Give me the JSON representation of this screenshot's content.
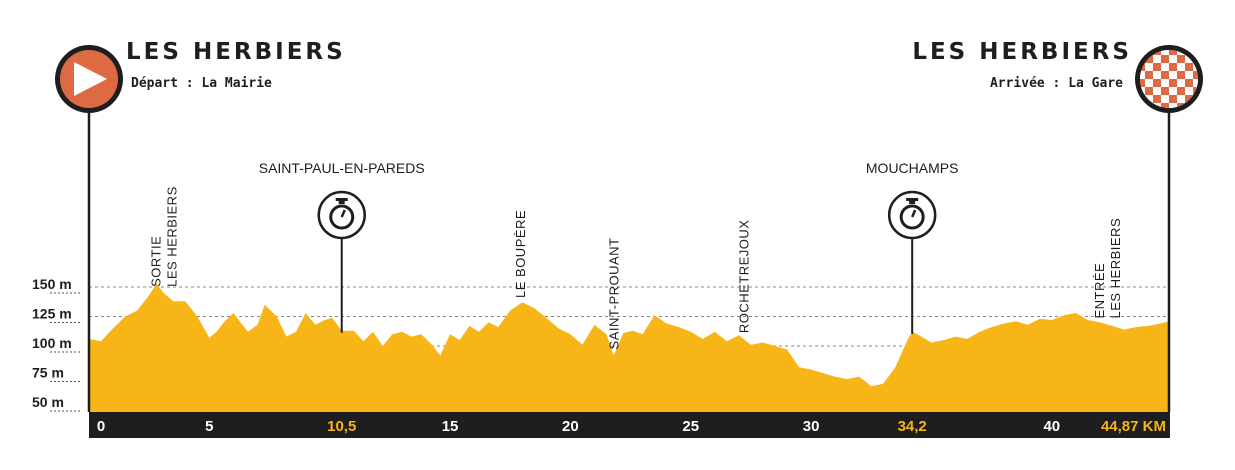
{
  "start": {
    "town": "LES HERBIERS",
    "subtitle": "Départ : La Mairie"
  },
  "finish": {
    "town": "LES HERBIERS",
    "subtitle": "Arrivée : La Gare"
  },
  "colors": {
    "profile": "#f7b517",
    "start_badge": "#de6a44",
    "axis_bar": "#1e1e1e",
    "highlight_tick": "#f7b517",
    "grid": "#888888"
  },
  "chart_data": {
    "type": "area",
    "title": "",
    "xlabel": "",
    "ylabel": "",
    "xlim": [
      0,
      44.87
    ],
    "ylim": [
      50,
      230
    ],
    "y_ticks": [
      {
        "value": 150,
        "label": "150 m"
      },
      {
        "value": 125,
        "label": "125 m"
      },
      {
        "value": 100,
        "label": "100 m"
      },
      {
        "value": 75,
        "label": "75 m"
      },
      {
        "value": 50,
        "label": "50 m"
      }
    ],
    "x_ticks": [
      {
        "value": 0,
        "label": "0",
        "highlight": false
      },
      {
        "value": 5,
        "label": "5",
        "highlight": false
      },
      {
        "value": 10.5,
        "label": "10,5",
        "highlight": true
      },
      {
        "value": 15,
        "label": "15",
        "highlight": false
      },
      {
        "value": 20,
        "label": "20",
        "highlight": false
      },
      {
        "value": 25,
        "label": "25",
        "highlight": false
      },
      {
        "value": 30,
        "label": "30",
        "highlight": false
      },
      {
        "value": 34.2,
        "label": "34,2",
        "highlight": true
      },
      {
        "value": 40,
        "label": "40",
        "highlight": false
      },
      {
        "value": 44.87,
        "label": "44,87 KM",
        "highlight": true
      }
    ],
    "grid_lines": [
      150,
      125,
      100
    ],
    "series": [
      {
        "x": [
          0,
          0.5,
          1.0,
          1.5,
          2.0,
          2.5,
          2.8,
          3.1,
          3.5,
          4.0,
          4.5,
          5.0,
          5.3,
          5.6,
          6.0,
          6.3,
          6.6,
          7.0,
          7.3,
          7.8,
          8.2,
          8.6,
          9.0,
          9.4,
          9.8,
          10.1,
          10.5,
          11.0,
          11.4,
          11.8,
          12.2,
          12.6,
          13.0,
          13.4,
          13.8,
          14.2,
          14.6,
          15.0,
          15.4,
          15.8,
          16.2,
          16.6,
          17.0,
          17.5,
          18.0,
          18.5,
          19.0,
          19.5,
          20.0,
          20.5,
          21.0,
          21.5,
          21.8,
          22.2,
          22.6,
          23.0,
          23.5,
          24.0,
          24.5,
          25.0,
          25.5,
          26.0,
          26.5,
          27.0,
          27.5,
          28.0,
          28.5,
          29.0,
          29.5,
          30.0,
          30.5,
          31.0,
          31.5,
          32.0,
          32.5,
          33.0,
          33.5,
          34.0,
          34.2,
          34.5,
          35.0,
          35.5,
          36.0,
          36.5,
          37.0,
          37.5,
          38.0,
          38.5,
          39.0,
          39.5,
          40.0,
          40.5,
          41.0,
          41.5,
          42.0,
          42.5,
          43.0,
          43.5,
          44.0,
          44.5,
          44.87
        ],
        "y": [
          106,
          104,
          115,
          125,
          130,
          143,
          153,
          145,
          138,
          138,
          125,
          107,
          112,
          120,
          128,
          120,
          112,
          118,
          135,
          125,
          108,
          112,
          128,
          118,
          122,
          124,
          113,
          113,
          104,
          112,
          100,
          110,
          112,
          108,
          110,
          102,
          92,
          110,
          105,
          117,
          112,
          120,
          116,
          130,
          137,
          132,
          124,
          115,
          110,
          101,
          118,
          110,
          92,
          111,
          113,
          110,
          126,
          119,
          116,
          112,
          106,
          112,
          104,
          109,
          101,
          103,
          100,
          97,
          82,
          80,
          77,
          74,
          72,
          74,
          66,
          68,
          82,
          105,
          112,
          109,
          103,
          105,
          108,
          106,
          112,
          116,
          119,
          121,
          118,
          123,
          122,
          126,
          128,
          122,
          120,
          117,
          114,
          116,
          117,
          119,
          121
        ]
      }
    ],
    "places": [
      {
        "km": 3.1,
        "lines": [
          "SORTIE",
          "LES HERBIERS"
        ]
      },
      {
        "km": 17.9,
        "lines": [
          "LE BOUPÈRE"
        ]
      },
      {
        "km": 21.8,
        "lines": [
          "SAINT-PROUANT"
        ]
      },
      {
        "km": 27.2,
        "lines": [
          "ROCHETREJOUX"
        ]
      },
      {
        "km": 42.3,
        "lines": [
          "ENTRÉE",
          "LES HERBIERS"
        ]
      }
    ],
    "checkpoints": [
      {
        "km": 10.5,
        "label": "SAINT-PAUL-EN-PAREDS",
        "icon": "stopwatch-icon"
      },
      {
        "km": 34.2,
        "label": "MOUCHAMPS",
        "icon": "stopwatch-icon"
      }
    ]
  }
}
